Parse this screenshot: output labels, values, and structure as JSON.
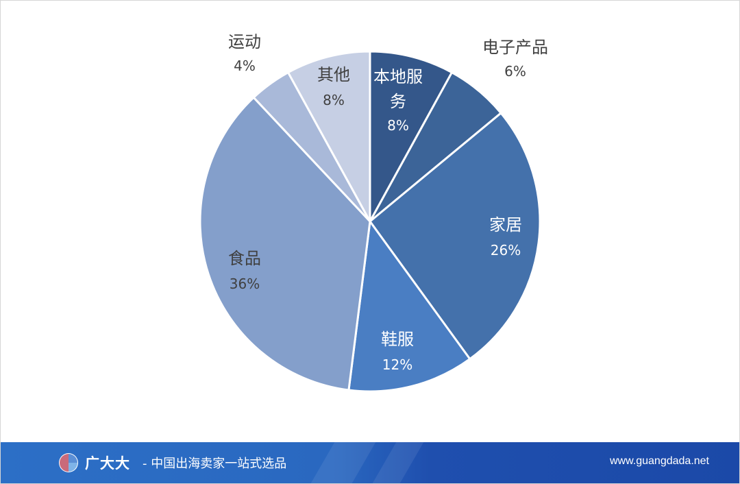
{
  "chart_data": {
    "type": "pie",
    "start": "12 o'clock, clockwise",
    "slices": [
      {
        "label": "本地服务",
        "label_lines": [
          "本地服",
          "务"
        ],
        "value": 8,
        "display": "8%",
        "color": "#34578a",
        "label_color": "#ffffff",
        "label_position": "inside"
      },
      {
        "label": "电子产品",
        "label_lines": [
          "电子产品"
        ],
        "value": 6,
        "display": "6%",
        "color": "#3c6498",
        "label_color": "#404040",
        "label_position": "outside"
      },
      {
        "label": "家居",
        "label_lines": [
          "家居"
        ],
        "value": 26,
        "display": "26%",
        "color": "#4471ab",
        "label_color": "#ffffff",
        "label_position": "inside"
      },
      {
        "label": "鞋服",
        "label_lines": [
          "鞋服"
        ],
        "value": 12,
        "display": "12%",
        "color": "#4a7ec3",
        "label_color": "#ffffff",
        "label_position": "inside"
      },
      {
        "label": "食品",
        "label_lines": [
          "食品"
        ],
        "value": 36,
        "display": "36%",
        "color": "#849fcb",
        "label_color": "#404040",
        "label_position": "inside"
      },
      {
        "label": "运动",
        "label_lines": [
          "运动"
        ],
        "value": 4,
        "display": "4%",
        "color": "#a9b9d9",
        "label_color": "#404040",
        "label_position": "outside"
      },
      {
        "label": "其他",
        "label_lines": [
          "其他"
        ],
        "value": 8,
        "display": "8%",
        "color": "#c6cfe4",
        "label_color": "#404040",
        "label_position": "inside"
      }
    ]
  },
  "footer": {
    "brand_name": "广大大",
    "slogan": "- 中国出海卖家一站式选品",
    "url": "www.guangdada.net",
    "logo_icon": "pie-logo-icon",
    "colors": {
      "bar": "#2a68c0",
      "logo_a": "#c96a7a",
      "logo_b": "#5b8fd6",
      "logo_c": "#7fb4e8"
    }
  }
}
